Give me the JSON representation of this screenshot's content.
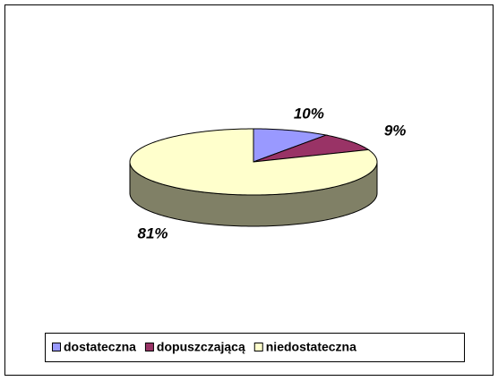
{
  "chart_data": {
    "type": "pie3d",
    "categories": [
      "dostateczna",
      "dopuszczającą",
      "niedostateczna"
    ],
    "values": [
      10,
      9,
      81
    ],
    "value_labels": [
      "10%",
      "9%",
      "81%"
    ],
    "colors": [
      "#9999ff",
      "#993366",
      "#ffffcc"
    ],
    "legend": "bottom"
  }
}
